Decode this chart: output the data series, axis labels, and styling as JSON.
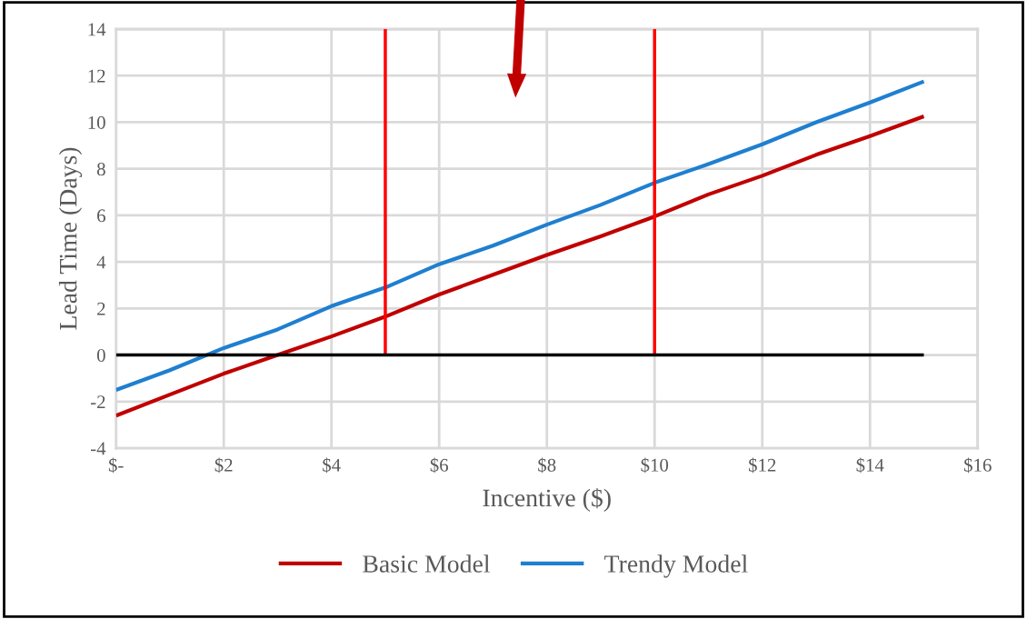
{
  "chart_data": {
    "type": "line",
    "xlabel": "Incentive ($)",
    "ylabel": "Lead Time (Days)",
    "x": [
      0,
      1,
      2,
      3,
      4,
      5,
      6,
      7,
      8,
      9,
      10,
      11,
      12,
      13,
      14,
      15
    ],
    "series": [
      {
        "name": "Basic Model",
        "color": "#c00000",
        "values": [
          -2.6,
          -1.7,
          -0.8,
          0,
          0.8,
          1.65,
          2.6,
          3.45,
          4.3,
          5.1,
          5.95,
          6.9,
          7.7,
          8.6,
          9.4,
          10.25
        ]
      },
      {
        "name": "Trendy Model",
        "color": "#1f7fd0",
        "values": [
          -1.5,
          -0.65,
          0.3,
          1.1,
          2.1,
          2.9,
          3.9,
          4.7,
          5.6,
          6.45,
          7.4,
          8.2,
          9.05,
          10.0,
          10.85,
          11.75
        ]
      },
      {
        "type": "line",
        "color": "#ff0000",
        "x": [
          5,
          5
        ],
        "values": [
          0,
          14
        ]
      },
      {
        "type": "line",
        "color": "#ff0000",
        "x": [
          10,
          10
        ],
        "values": [
          0,
          14
        ]
      },
      {
        "type": "line",
        "color": "#000000",
        "x": [
          0,
          15
        ],
        "values": [
          0,
          0
        ]
      }
    ],
    "xlim": [
      0,
      16
    ],
    "xticks": [
      {
        "value": 0,
        "label": "$-"
      },
      {
        "value": 2,
        "label": "$2"
      },
      {
        "value": 4,
        "label": "$4"
      },
      {
        "value": 6,
        "label": "$6"
      },
      {
        "value": 8,
        "label": "$8"
      },
      {
        "value": 10,
        "label": "$10"
      },
      {
        "value": 12,
        "label": "$12"
      },
      {
        "value": 14,
        "label": "$14"
      },
      {
        "value": 16,
        "label": "$16"
      }
    ],
    "ylim": [
      -4,
      14
    ],
    "yticks": [
      -4,
      -2,
      0,
      2,
      4,
      6,
      8,
      10,
      12,
      14
    ],
    "grid": true,
    "legend": "bottom",
    "marker": "none",
    "line_style": "solid"
  }
}
